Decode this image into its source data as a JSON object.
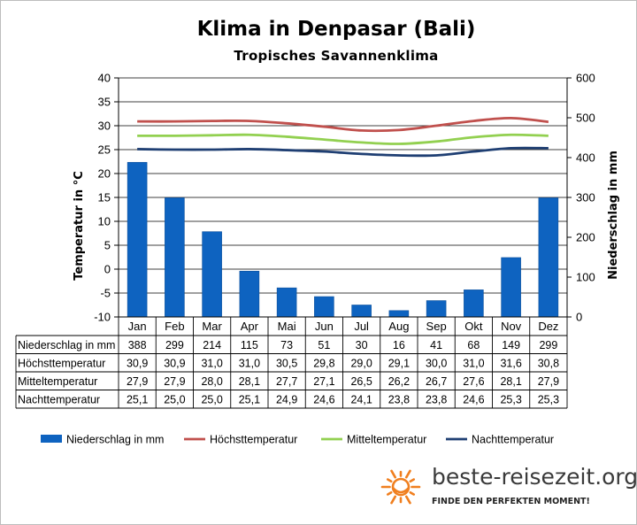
{
  "colors": {
    "precipitation": "#0e63c0",
    "high": "#c0504d",
    "mean": "#92d050",
    "night": "#1f3f73",
    "logo_sun": "#f07f1f"
  },
  "chart_data": {
    "type": "bar+line",
    "title": "Klima in Denpasar (Bali)",
    "subtitle": "Tropisches Savannenklima",
    "categories": [
      "Jan",
      "Feb",
      "Mar",
      "Apr",
      "Mai",
      "Jun",
      "Jul",
      "Aug",
      "Sep",
      "Okt",
      "Nov",
      "Dez"
    ],
    "y_left": {
      "label": "Temperatur in °C",
      "range": [
        -10,
        40
      ],
      "ticks": [
        "-10",
        "-5",
        "0",
        "5",
        "10",
        "15",
        "20",
        "25",
        "30",
        "35",
        "40"
      ]
    },
    "y_right": {
      "label": "Niederschlag in mm",
      "range": [
        0,
        600
      ],
      "ticks": [
        "0",
        "100",
        "200",
        "300",
        "400",
        "500",
        "600"
      ]
    },
    "series": [
      {
        "name": "Niederschlag in mm",
        "type": "bar",
        "axis": "right",
        "color": "#0e63c0",
        "values": [
          388,
          299,
          214,
          115,
          73,
          51,
          30,
          16,
          41,
          68,
          149,
          299
        ],
        "labels": [
          "388",
          "299",
          "214",
          "115",
          "73",
          "51",
          "30",
          "16",
          "41",
          "68",
          "149",
          "299"
        ]
      },
      {
        "name": "Höchsttemperatur",
        "type": "line",
        "axis": "left",
        "color": "#c0504d",
        "values": [
          30.9,
          30.9,
          31.0,
          31.0,
          30.5,
          29.8,
          29.0,
          29.1,
          30.0,
          31.0,
          31.6,
          30.8
        ],
        "labels": [
          "30,9",
          "30,9",
          "31,0",
          "31,0",
          "30,5",
          "29,8",
          "29,0",
          "29,1",
          "30,0",
          "31,0",
          "31,6",
          "30,8"
        ]
      },
      {
        "name": "Mitteltemperatur",
        "type": "line",
        "axis": "left",
        "color": "#92d050",
        "values": [
          27.9,
          27.9,
          28.0,
          28.1,
          27.7,
          27.1,
          26.5,
          26.2,
          26.7,
          27.6,
          28.1,
          27.9
        ],
        "labels": [
          "27,9",
          "27,9",
          "28,0",
          "28,1",
          "27,7",
          "27,1",
          "26,5",
          "26,2",
          "26,7",
          "27,6",
          "28,1",
          "27,9"
        ]
      },
      {
        "name": "Nachttemperatur",
        "type": "line",
        "axis": "left",
        "color": "#1f3f73",
        "values": [
          25.1,
          25.0,
          25.0,
          25.1,
          24.9,
          24.6,
          24.1,
          23.8,
          23.8,
          24.6,
          25.3,
          25.3
        ],
        "labels": [
          "25,1",
          "25,0",
          "25,0",
          "25,1",
          "24,9",
          "24,6",
          "24,1",
          "23,8",
          "23,8",
          "24,6",
          "25,3",
          "25,3"
        ]
      }
    ],
    "grid": "horizontal",
    "legend": "bottom",
    "data_table": true
  },
  "brand": {
    "name": "beste-reisezeit.org",
    "slogan": "FINDE DEN PERFEKTEN MOMENT!",
    "logo_icon": "sun-icon"
  }
}
